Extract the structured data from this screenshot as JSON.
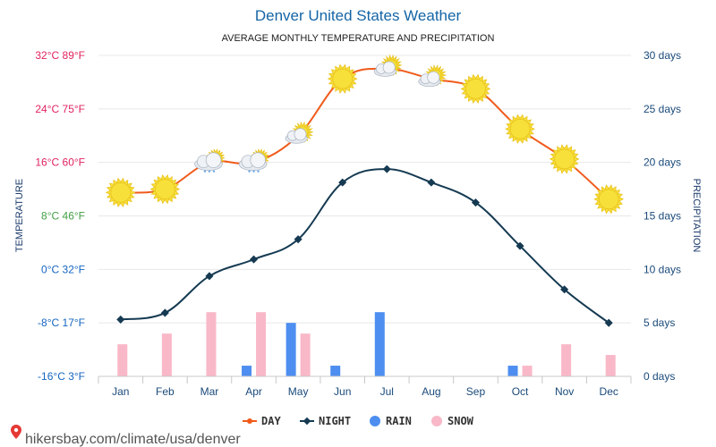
{
  "chart_data": {
    "type": "line",
    "title": "Denver United States Weather",
    "subtitle": "AVERAGE MONTHLY TEMPERATURE AND PRECIPITATION",
    "categories": [
      "Jan",
      "Feb",
      "Mar",
      "Apr",
      "May",
      "Jun",
      "Jul",
      "Aug",
      "Sep",
      "Oct",
      "Nov",
      "Dec"
    ],
    "y_left": {
      "label": "TEMPERATURE",
      "range_c": [
        -16,
        32
      ],
      "ticks": [
        {
          "value": 32,
          "label": "32°C 89°F",
          "color": "#e0245e"
        },
        {
          "value": 24,
          "label": "24°C 75°F",
          "color": "#e0245e"
        },
        {
          "value": 16,
          "label": "16°C 60°F",
          "color": "#e0245e"
        },
        {
          "value": 8,
          "label": "8°C 46°F",
          "color": "#43a047"
        },
        {
          "value": 0,
          "label": "0°C 32°F",
          "color": "#1565c0"
        },
        {
          "value": -8,
          "label": "-8°C 17°F",
          "color": "#1565c0"
        },
        {
          "value": -16,
          "label": "-16°C 3°F",
          "color": "#1565c0"
        }
      ]
    },
    "y_right": {
      "label": "PRECIPITATION",
      "range_days": [
        0,
        30
      ],
      "ticks": [
        {
          "value": 30,
          "label": "30 days"
        },
        {
          "value": 25,
          "label": "25 days"
        },
        {
          "value": 20,
          "label": "20 days"
        },
        {
          "value": 15,
          "label": "15 days"
        },
        {
          "value": 10,
          "label": "10 days"
        },
        {
          "value": 5,
          "label": "5 days"
        },
        {
          "value": 0,
          "label": "0 days"
        }
      ]
    },
    "series": [
      {
        "name": "DAY",
        "type": "line",
        "color": "#f05a1a",
        "values": [
          11.5,
          12,
          16,
          16,
          20,
          28.5,
          30,
          28.5,
          27,
          21,
          16.5,
          10.5
        ]
      },
      {
        "name": "NIGHT",
        "type": "line",
        "color": "#153a52",
        "values": [
          -7.5,
          -6.5,
          -1,
          1.5,
          4.5,
          13,
          15,
          13,
          10,
          3.5,
          -3,
          -8
        ]
      },
      {
        "name": "RAIN",
        "type": "bar",
        "color": "#4d8ef0",
        "values": [
          0,
          0,
          0,
          1,
          5,
          1,
          6,
          0,
          0,
          1,
          0,
          0
        ]
      },
      {
        "name": "SNOW",
        "type": "bar",
        "color": "#f9b8c8",
        "values": [
          3,
          4,
          6,
          6,
          4,
          0,
          0,
          0,
          0,
          1,
          3,
          2
        ]
      }
    ],
    "weather_icons": [
      "sunny",
      "sunny",
      "cloudy-rain",
      "cloudy-rain",
      "partly-cloudy",
      "sunny",
      "partly-cloudy",
      "partly-cloudy",
      "sunny",
      "sunny",
      "sunny",
      "sunny"
    ]
  },
  "footer": {
    "url": "hikersbay.com/climate/usa/denver"
  },
  "colors": {
    "grid": "#e8e8e8",
    "title": "#1565a6",
    "axis": "#1a4a7a",
    "sun": "#f7e03a",
    "sun_edge": "#e9c21b"
  }
}
